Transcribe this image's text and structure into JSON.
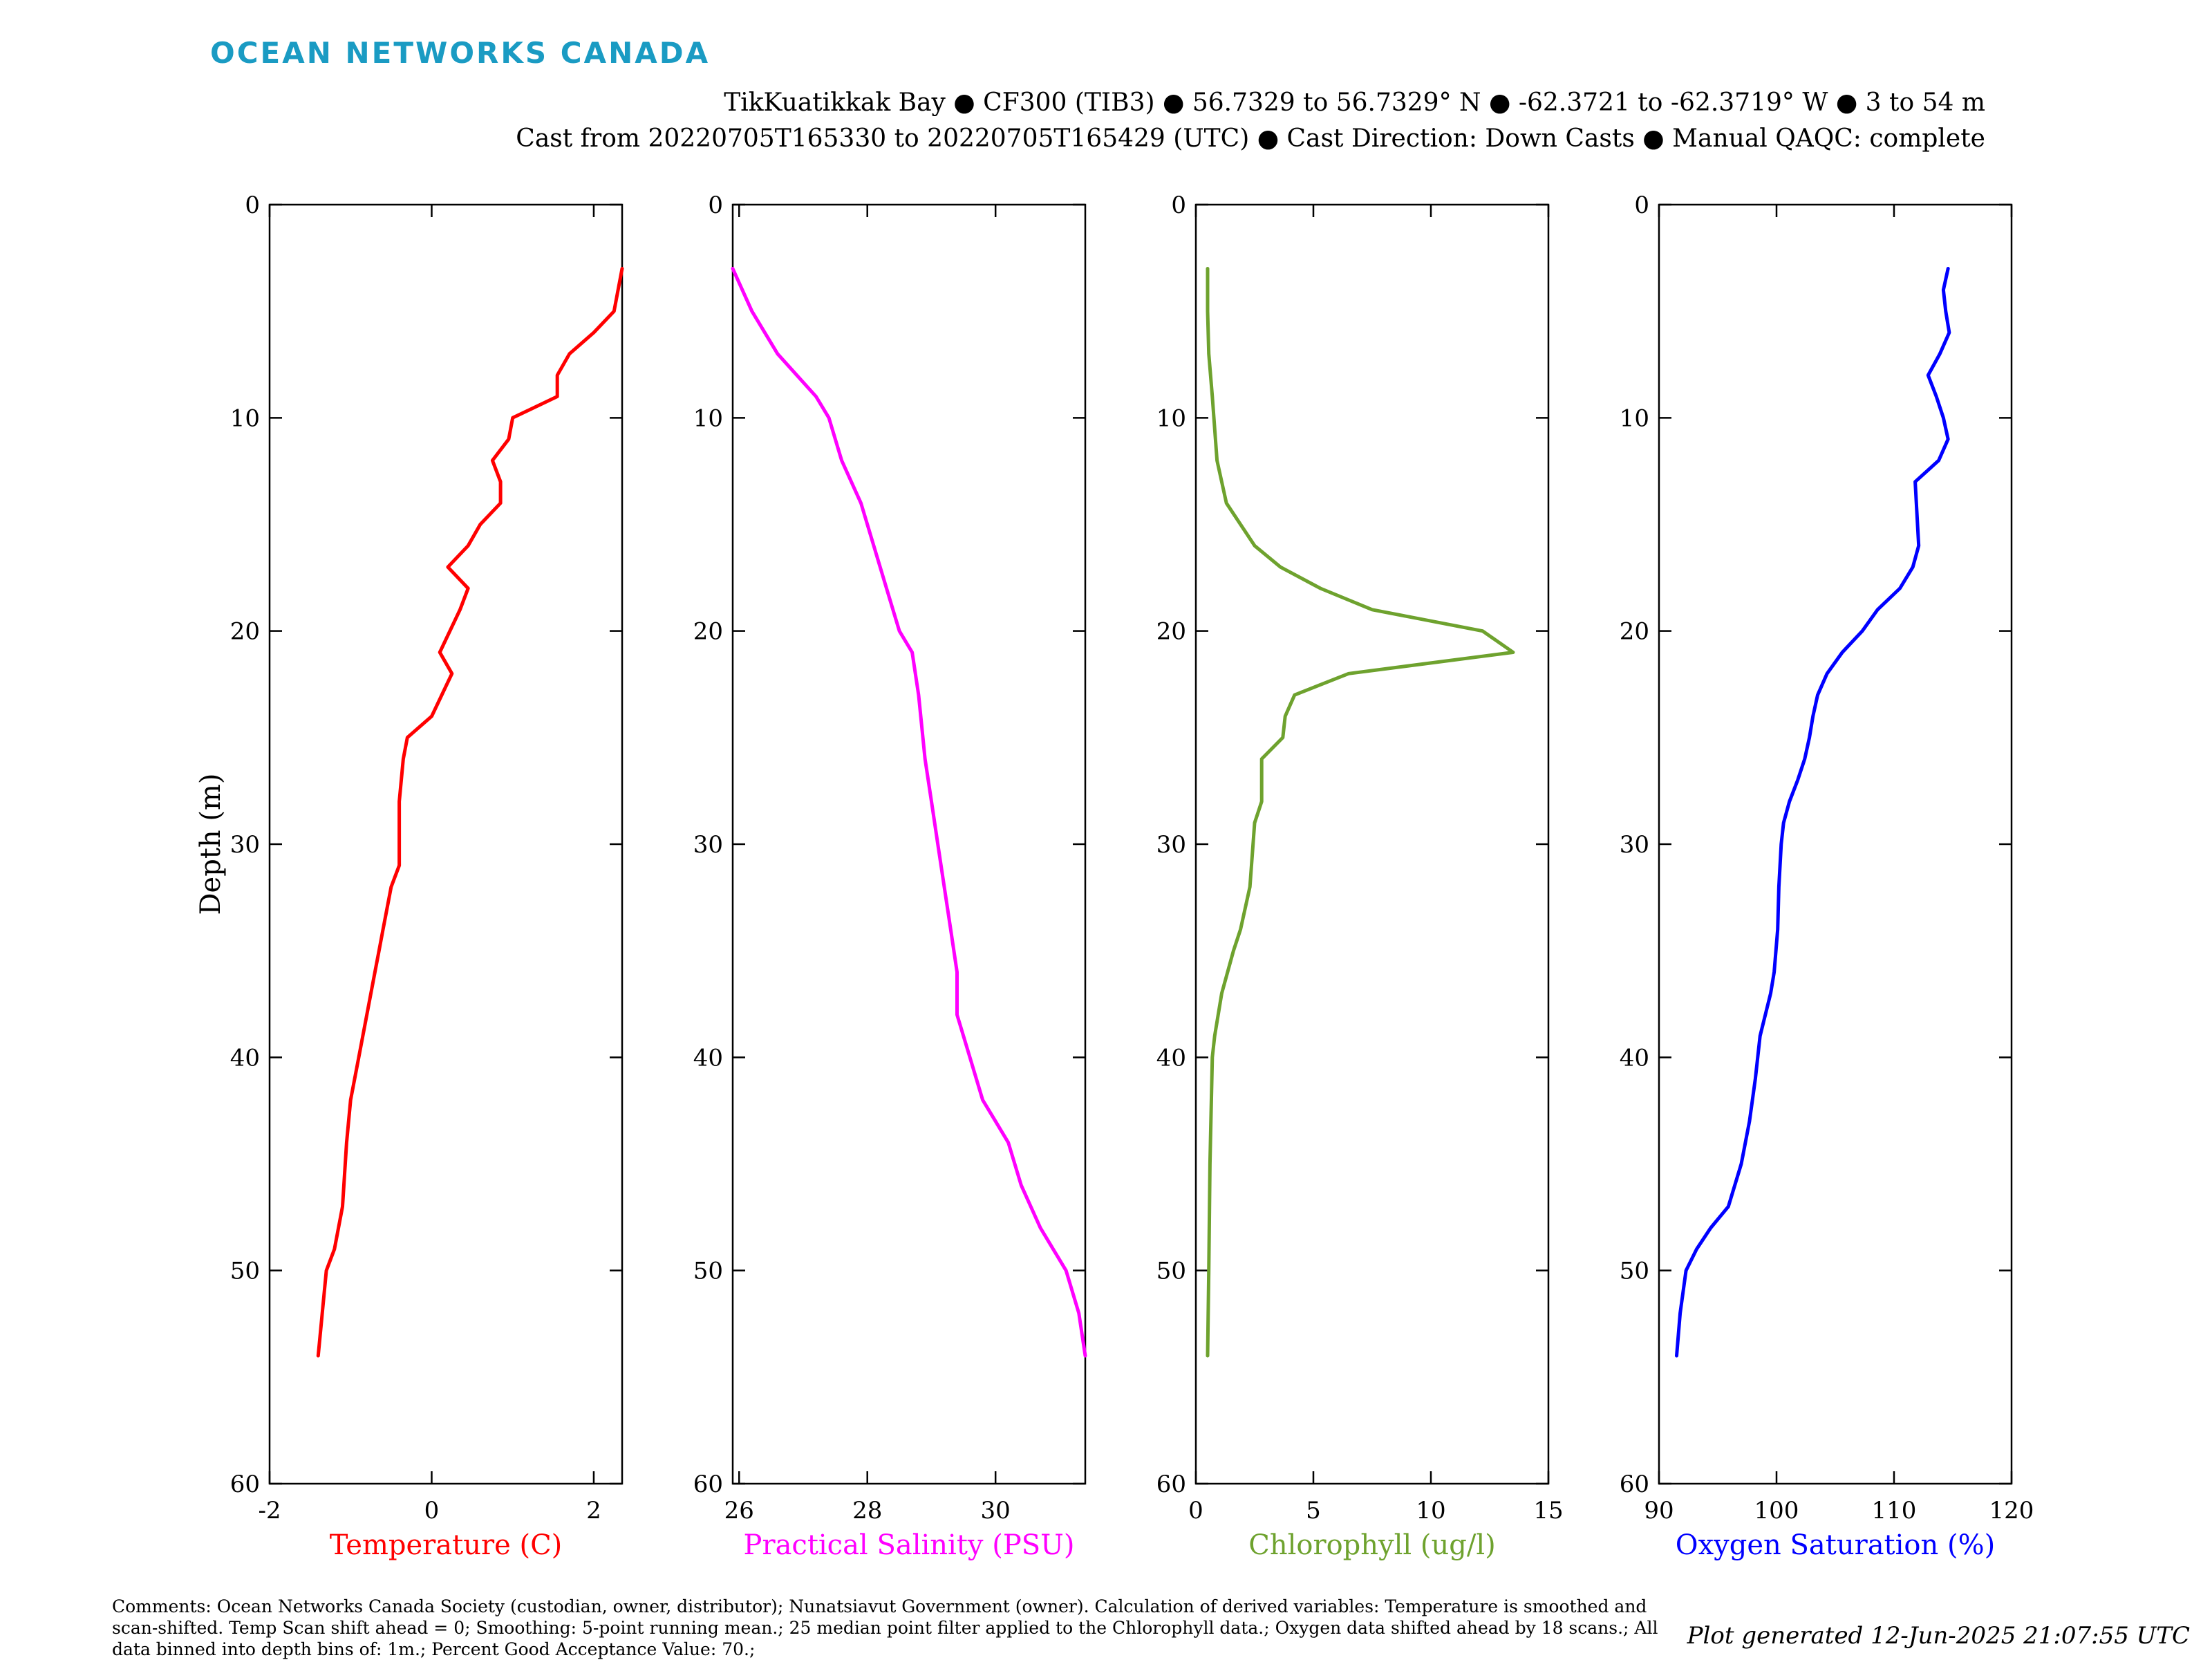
{
  "brand": "OCEAN NETWORKS CANADA",
  "header": {
    "line1": "TikKuatikkak Bay ● CF300 (TIB3) ● 56.7329 to 56.7329° N ● -62.3721 to -62.3719° W ● 3 to 54 m",
    "line2": "Cast from 20220705T165330 to 20220705T165429 (UTC) ● Cast Direction: Down Casts ● Manual QAQC: complete"
  },
  "footer": {
    "comments": "Comments: Ocean Networks Canada Society (custodian, owner, distributor); Nunatsiavut Government (owner). Calculation of derived variables: Temperature is smoothed and scan-shifted. Temp Scan shift ahead = 0; Smoothing: 5-point running mean.; 25 median point filter applied to the Chlorophyll data.; Oxygen data shifted ahead by 18 scans.; All data binned into depth bins of: 1m.; Percent Good Acceptance Value: 70.;",
    "generated": "Plot generated 12-Jun-2025 21:07:55 UTC"
  },
  "chart_data": [
    {
      "type": "line",
      "ylabel": "Depth (m)",
      "xlabel": "Temperature (C)",
      "color": "#ff0000",
      "xlim": [
        -2,
        2.35
      ],
      "ylim": [
        0,
        60
      ],
      "y_reversed": true,
      "xticks": [
        -2,
        0,
        2
      ],
      "yticks": [
        0,
        10,
        20,
        30,
        40,
        50,
        60
      ],
      "x": [
        2.35,
        2.25,
        2.0,
        1.7,
        1.55,
        1.55,
        1.0,
        0.95,
        0.75,
        0.85,
        0.85,
        0.6,
        0.45,
        0.2,
        0.45,
        0.35,
        0.1,
        0.25,
        0.0,
        -0.3,
        -0.35,
        -0.4,
        -0.4,
        -0.4,
        -0.5,
        -0.55,
        -0.6,
        -0.65,
        -0.7,
        -0.8,
        -0.9,
        -1.0,
        -1.05,
        -1.1,
        -1.2,
        -1.3,
        -1.35,
        -1.4
      ],
      "y": [
        3,
        5,
        6,
        7,
        8,
        9,
        10,
        11,
        12,
        13,
        14,
        15,
        16,
        17,
        18,
        19,
        21,
        22,
        24,
        25,
        26,
        28,
        29,
        31,
        32,
        33,
        34,
        35,
        36,
        38,
        40,
        42,
        44,
        47,
        49,
        50,
        52,
        54
      ]
    },
    {
      "type": "line",
      "xlabel": "Practical Salinity (PSU)",
      "color": "#ff00ff",
      "xlim": [
        25.9,
        31.4
      ],
      "ylim": [
        0,
        60
      ],
      "y_reversed": true,
      "xticks": [
        26,
        28,
        30
      ],
      "yticks": [
        0,
        10,
        20,
        30,
        40,
        50,
        60
      ],
      "x": [
        25.9,
        26.2,
        26.6,
        26.9,
        27.2,
        27.4,
        27.6,
        27.9,
        28.1,
        28.3,
        28.5,
        28.7,
        28.8,
        28.9,
        29.0,
        29.1,
        29.2,
        29.3,
        29.4,
        29.4,
        29.6,
        29.8,
        30.0,
        30.2,
        30.4,
        30.7,
        31.1,
        31.3,
        31.4
      ],
      "y": [
        3,
        5,
        7,
        8,
        9,
        10,
        12,
        14,
        16,
        18,
        20,
        21,
        23,
        26,
        28,
        30,
        32,
        34,
        36,
        38,
        40,
        42,
        43,
        44,
        46,
        48,
        50,
        52,
        54
      ]
    },
    {
      "type": "line",
      "xlabel": "Chlorophyll (ug/l)",
      "color": "#6ea22e",
      "xlim": [
        0,
        15
      ],
      "ylim": [
        0,
        60
      ],
      "y_reversed": true,
      "xticks": [
        0,
        5,
        10,
        15
      ],
      "yticks": [
        0,
        10,
        20,
        30,
        40,
        50,
        60
      ],
      "x": [
        0.5,
        0.5,
        0.55,
        0.7,
        0.9,
        1.3,
        1.9,
        2.5,
        3.6,
        5.3,
        7.5,
        12.2,
        13.5,
        6.5,
        4.2,
        3.8,
        3.7,
        2.8,
        2.8,
        2.5,
        2.3,
        2.1,
        1.9,
        1.6,
        1.1,
        0.8,
        0.7,
        0.6,
        0.55,
        0.5
      ],
      "y": [
        3,
        5,
        7,
        9,
        12,
        14,
        15,
        16,
        17,
        18,
        19,
        20,
        21,
        22,
        23,
        24,
        25,
        26,
        28,
        29,
        32,
        33,
        34,
        35,
        37,
        39,
        40,
        45,
        50,
        54
      ]
    },
    {
      "type": "line",
      "xlabel": "Oxygen Saturation (%)",
      "color": "#0000ff",
      "xlim": [
        90,
        120
      ],
      "ylim": [
        0,
        60
      ],
      "y_reversed": true,
      "xticks": [
        90,
        100,
        110,
        120
      ],
      "yticks": [
        0,
        10,
        20,
        30,
        40,
        50,
        60
      ],
      "x": [
        114.6,
        114.2,
        114.4,
        114.7,
        113.9,
        112.9,
        113.6,
        114.2,
        114.6,
        113.8,
        111.8,
        111.9,
        112.1,
        111.6,
        110.5,
        108.6,
        107.3,
        105.6,
        104.3,
        103.5,
        103.1,
        102.8,
        102.4,
        101.8,
        101.1,
        100.6,
        100.4,
        100.2,
        100.1,
        99.8,
        99.5,
        98.6,
        98.2,
        97.7,
        97.0,
        95.9,
        94.4,
        93.2,
        92.3,
        91.8,
        91.5
      ],
      "y": [
        3,
        4,
        5,
        6,
        7,
        8,
        9,
        10,
        11,
        12,
        13,
        14,
        16,
        17,
        18,
        19,
        20,
        21,
        22,
        23,
        24,
        25,
        26,
        27,
        28,
        29,
        30,
        32,
        34,
        36,
        37,
        39,
        41,
        43,
        45,
        47,
        48,
        49,
        50,
        52,
        54
      ]
    }
  ]
}
